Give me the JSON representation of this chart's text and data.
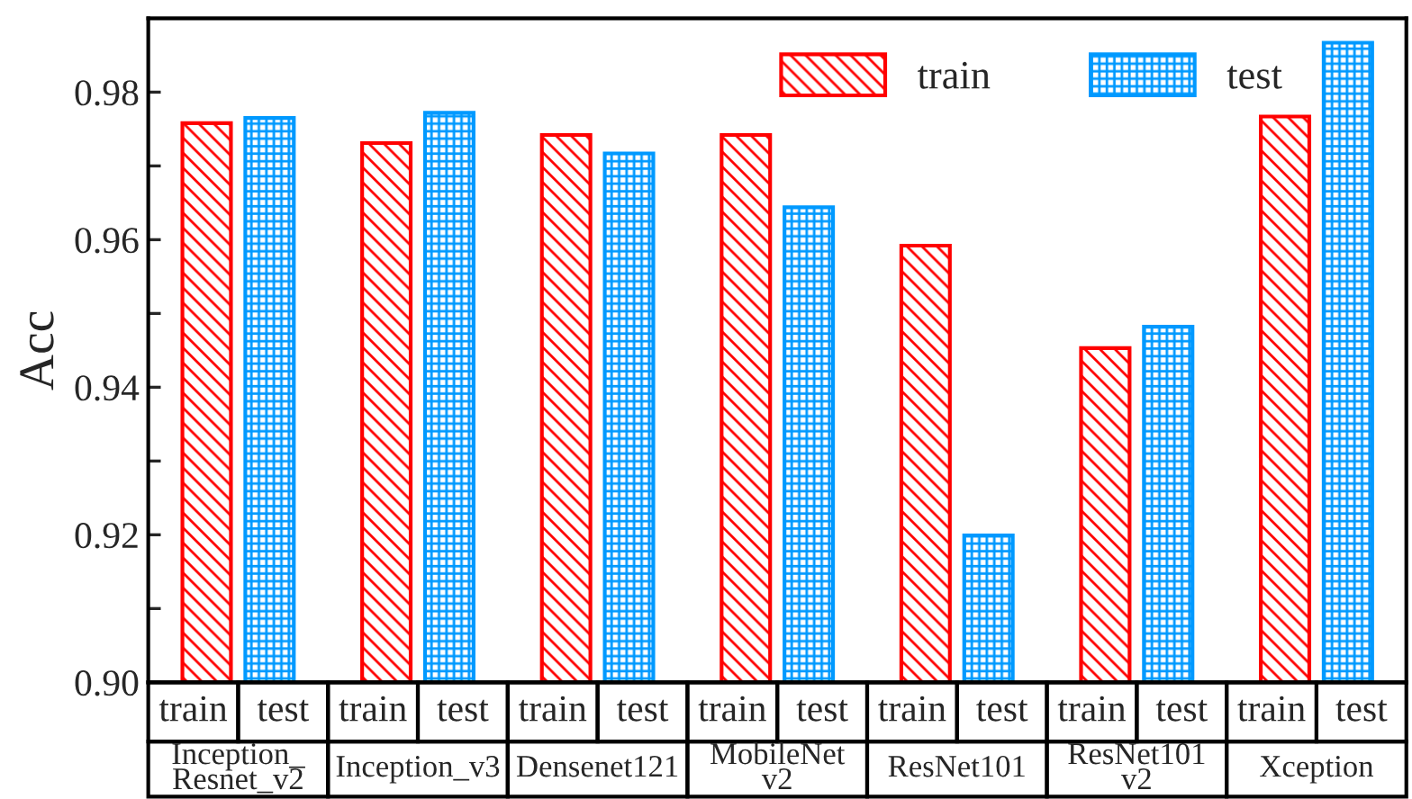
{
  "chart_data": {
    "type": "bar",
    "ylabel": "Acc",
    "categories": [
      "Inception_\nResnet_v2",
      "Inception_v3",
      "Densenet121",
      "MobileNet\nv2",
      "ResNet101",
      "ResNet101\nv2",
      "Xception"
    ],
    "series": [
      {
        "name": "train",
        "color": "#ff0000",
        "values": [
          0.9758,
          0.9731,
          0.9742,
          0.9742,
          0.9592,
          0.9453,
          0.9767
        ]
      },
      {
        "name": "test",
        "color": "#0099ff",
        "values": [
          0.9765,
          0.9772,
          0.9717,
          0.9644,
          0.9199,
          0.9482,
          0.9867
        ]
      }
    ],
    "ylim": [
      0.9,
      0.99
    ],
    "yticks": [
      {
        "value": 0.9,
        "label": "0.90"
      },
      {
        "value": 0.91,
        "label": null
      },
      0.92,
      {
        "value": 0.93,
        "label": null
      },
      0.94,
      {
        "value": 0.95,
        "label": null
      },
      0.96,
      {
        "value": 0.97,
        "label": null
      },
      0.98
    ],
    "legend": "top right",
    "grid": false
  }
}
